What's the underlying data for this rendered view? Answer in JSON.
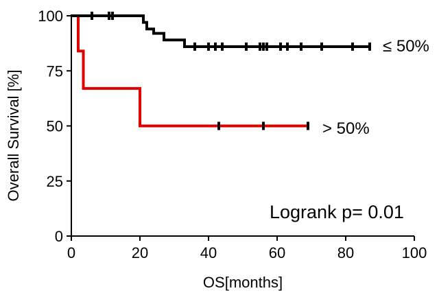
{
  "chart_data": {
    "type": "line",
    "step": true,
    "xlabel": "OS[months]",
    "ylabel": "Overall Survival [%]",
    "xlim": [
      0,
      100
    ],
    "ylim": [
      0,
      100
    ],
    "xticks": [
      0,
      20,
      40,
      60,
      80,
      100
    ],
    "yticks": [
      0,
      25,
      50,
      75,
      100
    ],
    "xtick_labels": [
      "0",
      "20",
      "40",
      "60",
      "80",
      "100"
    ],
    "ytick_labels": [
      "0",
      "25",
      "50",
      "75",
      "100"
    ],
    "grid": false,
    "series": [
      {
        "name": "≤ 50%",
        "color": "#000000",
        "x": [
          0,
          21,
          22,
          24,
          27,
          33,
          87
        ],
        "y": [
          100,
          97,
          94,
          92,
          89,
          86,
          86
        ],
        "censor_x": [
          6,
          11,
          12,
          36,
          40,
          42,
          44,
          51,
          55,
          56,
          57,
          61,
          63,
          67,
          73,
          82,
          87
        ],
        "censor_y": [
          100,
          100,
          100,
          86,
          86,
          86,
          86,
          86,
          86,
          86,
          86,
          86,
          86,
          86,
          86,
          86,
          86
        ]
      },
      {
        "name": "> 50%",
        "color": "#e00000",
        "x": [
          0,
          2,
          3.5,
          20,
          69
        ],
        "y": [
          100,
          84,
          67,
          50,
          50
        ],
        "censor_x": [
          43,
          56,
          69
        ],
        "censor_y": [
          50,
          50,
          50
        ]
      }
    ],
    "annotations": [
      "Logrank p= 0.01"
    ]
  }
}
